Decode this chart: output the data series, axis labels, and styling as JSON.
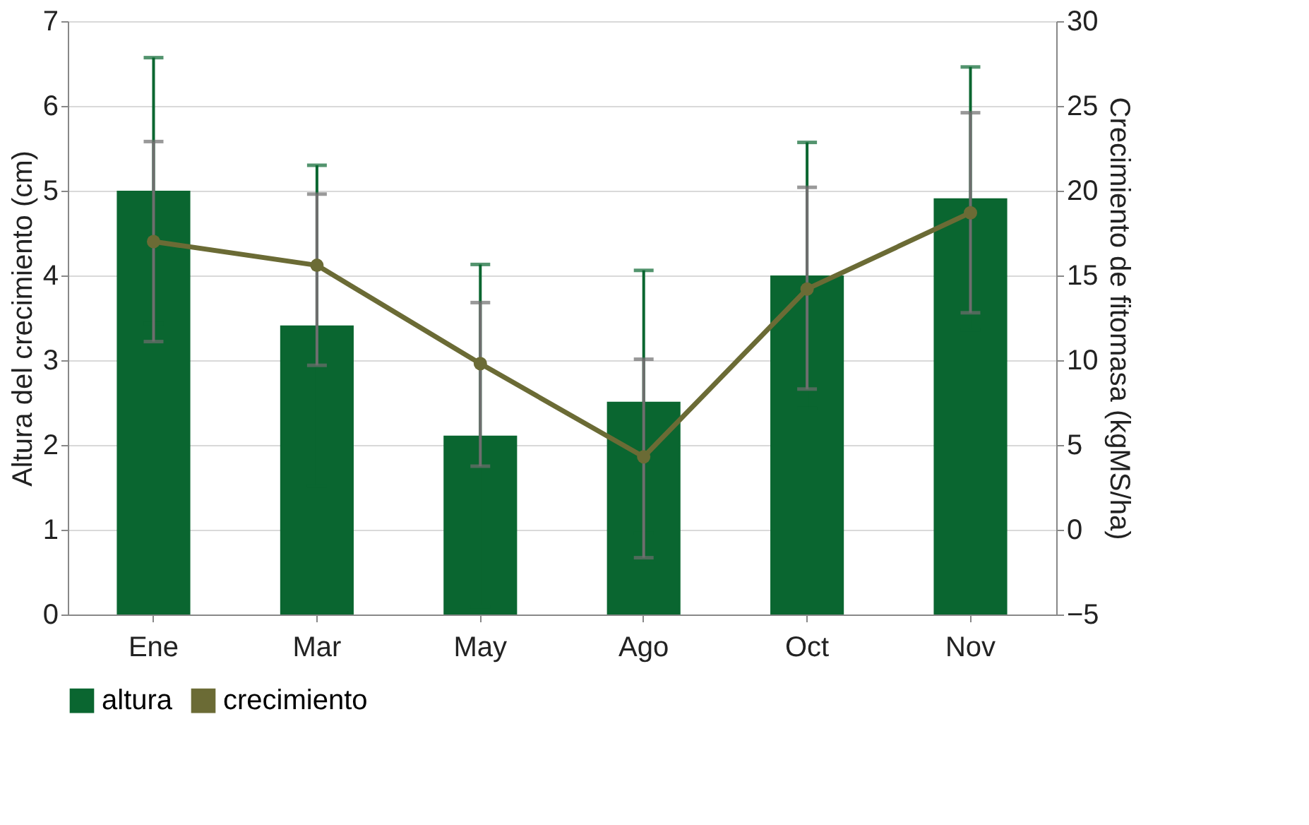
{
  "chart_data": {
    "type": "bar",
    "categories": [
      "Ene",
      "Mar",
      "May",
      "Ago",
      "Oct",
      "Nov"
    ],
    "ylabel": "Altura del crecimiento (cm)",
    "y2label": "Crecimiento de fitomasa (kgMS/ha)",
    "series": [
      {
        "name": "altura",
        "color": "#0a6630",
        "values": [
          5.0,
          3.41,
          2.11,
          2.51,
          4.0,
          4.91
        ],
        "errors": [
          1.57,
          1.89,
          2.02,
          1.55,
          1.57,
          1.55
        ]
      },
      {
        "name": "crecimiento",
        "type": "line",
        "axis": "y2",
        "color": "#6b6b35",
        "values": [
          17.0,
          15.6,
          9.8,
          4.3,
          14.2,
          18.7
        ],
        "errors": [
          [
            11.1,
            22.9
          ],
          [
            9.7,
            19.8
          ],
          [
            3.75,
            13.4
          ],
          [
            -1.65,
            10.06
          ],
          [
            8.3,
            20.2
          ],
          [
            12.8,
            24.6
          ]
        ]
      }
    ],
    "ylim": [
      0,
      7
    ],
    "yticks": [
      0,
      1,
      2,
      3,
      4,
      5,
      6,
      7
    ],
    "y2lim": [
      -5,
      30
    ],
    "y2ticks": [
      -5,
      0,
      5,
      10,
      15,
      20,
      25,
      30
    ],
    "grid": "y",
    "legend": "bottom",
    "marker": "circle",
    "line_style": "solid"
  }
}
